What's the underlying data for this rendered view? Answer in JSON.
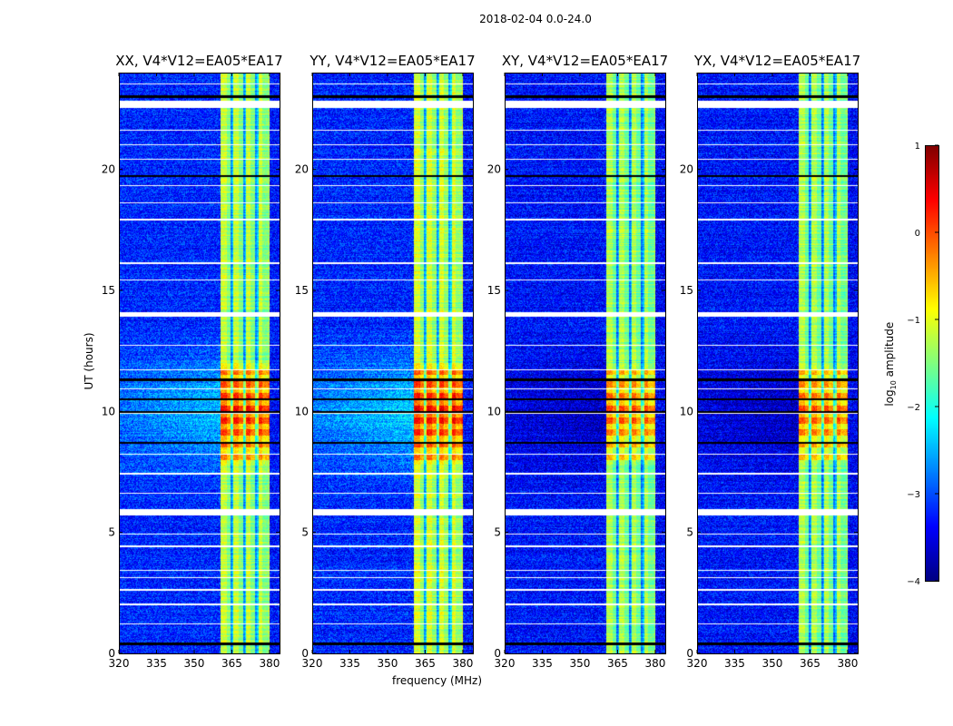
{
  "chart_data": {
    "type": "heatmap",
    "suptitle": "2018-02-04 0.0-24.0",
    "xlabel": "frequency (MHz)",
    "ylabel": "UT (hours)",
    "xlim": [
      320,
      384
    ],
    "ylim": [
      0,
      24
    ],
    "xticks": [
      320,
      335,
      350,
      365,
      380
    ],
    "yticks": [
      0,
      5,
      10,
      15,
      20
    ],
    "panels": [
      {
        "title": "XX, V4*V12=EA05*EA17",
        "background": -3.2,
        "band": -1.4,
        "peak": 0.2,
        "low_band_glow": -2.4
      },
      {
        "title": "YY, V4*V12=EA05*EA17",
        "background": -3.2,
        "band": -1.3,
        "peak": 0.3,
        "low_band_glow": -2.3
      },
      {
        "title": "XY, V4*V12=EA05*EA17",
        "background": -3.3,
        "band": -1.5,
        "peak": -0.1,
        "low_band_glow": -3.7
      },
      {
        "title": "YX, V4*V12=EA05*EA17",
        "background": -3.3,
        "band": -1.5,
        "peak": -0.1,
        "low_band_glow": -3.7
      }
    ],
    "rfi_band_mhz": [
      360.5,
      380
    ],
    "band_gaps_mhz": [
      365,
      370,
      375
    ],
    "flagged_hours_white": [
      [
        22.55,
        22.85
      ],
      [
        13.9,
        14.1
      ],
      [
        5.7,
        5.95
      ],
      [
        23.5,
        23.55
      ],
      [
        21.6,
        21.65
      ],
      [
        21.0,
        21.05
      ],
      [
        20.4,
        20.45
      ],
      [
        19.3,
        19.35
      ],
      [
        18.6,
        18.65
      ],
      [
        17.9,
        17.95
      ],
      [
        16.1,
        16.15
      ],
      [
        15.4,
        15.45
      ],
      [
        12.7,
        12.75
      ],
      [
        11.7,
        11.75
      ],
      [
        10.9,
        10.95
      ],
      [
        9.9,
        9.95
      ],
      [
        8.2,
        8.25
      ],
      [
        7.4,
        7.45
      ],
      [
        6.6,
        6.65
      ],
      [
        4.9,
        4.95
      ],
      [
        4.4,
        4.45
      ],
      [
        3.4,
        3.45
      ],
      [
        3.1,
        3.15
      ],
      [
        2.6,
        2.65
      ],
      [
        2.0,
        2.05
      ],
      [
        1.2,
        1.25
      ]
    ],
    "flagged_hours_black": [
      [
        22.95,
        23.05
      ],
      [
        11.25,
        11.35
      ],
      [
        10.45,
        10.55
      ],
      [
        9.95,
        10.0
      ],
      [
        8.65,
        8.75
      ],
      [
        0.35,
        0.45
      ],
      [
        19.7,
        19.75
      ]
    ],
    "colorbar": {
      "label": "log10 amplitude",
      "label_main": "log",
      "label_sub": "10",
      "label_rest": " amplitude",
      "range": [
        -4,
        1
      ],
      "ticks": [
        1,
        0,
        -1,
        -2,
        -3,
        -4
      ],
      "tick_labels": [
        "1",
        "0",
        "−1",
        "−2",
        "−3",
        "−4"
      ],
      "colormap": "jet"
    }
  }
}
